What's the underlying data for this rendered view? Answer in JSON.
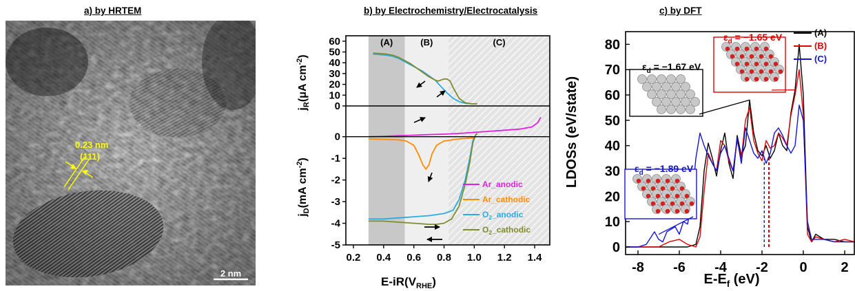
{
  "panels": {
    "a_title": "a) by HRTEM",
    "b_title": "b) by Electrochemistry/Electrocatalysis",
    "c_title": "c) by DFT"
  },
  "hrtem": {
    "lattice_spacing": "0.23 nm",
    "plane": "(111)",
    "scale_bar": "2 nm",
    "annotation_color": "#ffff00"
  },
  "chart_data": [
    {
      "type": "line",
      "panel": "b-top",
      "ylabel": "j_R(μA cm^-2)",
      "ylim": [
        0,
        65
      ],
      "yticks": [
        0,
        10,
        20,
        30,
        40,
        50,
        60
      ],
      "xlim": [
        0.15,
        1.5
      ],
      "regions": [
        {
          "label": "(A)",
          "x": [
            0.3,
            0.54
          ],
          "color": "#c8c8c8"
        },
        {
          "label": "(B)",
          "x": [
            0.54,
            0.83
          ],
          "color": "#efefef"
        },
        {
          "label": "(C)",
          "x": [
            0.83,
            1.5
          ],
          "color": "#e6e6e6",
          "hatched": true
        }
      ],
      "series": [
        {
          "name": "O2_anodic",
          "color": "#29abe2",
          "x": [
            0.33,
            0.38,
            0.42,
            0.46,
            0.5,
            0.54,
            0.58,
            0.62,
            0.66,
            0.7,
            0.74,
            0.78,
            0.82,
            0.86,
            0.9,
            0.94,
            0.98,
            1.02
          ],
          "y": [
            48,
            47.5,
            47,
            46,
            44,
            41,
            38,
            35,
            32,
            28,
            24,
            18,
            12,
            7,
            4,
            2.5,
            2,
            2
          ]
        },
        {
          "name": "O2_cathodic",
          "color": "#808b2e",
          "x": [
            0.33,
            0.38,
            0.42,
            0.46,
            0.5,
            0.54,
            0.58,
            0.62,
            0.66,
            0.7,
            0.74,
            0.76,
            0.78,
            0.8,
            0.82,
            0.84,
            0.86,
            0.9,
            0.94,
            0.98,
            1.02
          ],
          "y": [
            49,
            48.5,
            48,
            47,
            45,
            42,
            39,
            35,
            31,
            27,
            24,
            23,
            24,
            25,
            25,
            23,
            17,
            7,
            3,
            2,
            2
          ]
        }
      ]
    },
    {
      "type": "line",
      "panel": "b-bottom",
      "xlabel": "E-iR(V_RHE)",
      "ylabel": "j_D(mA cm^-2)",
      "xlim": [
        0.15,
        1.5
      ],
      "xticks": [
        0.2,
        0.4,
        0.6,
        0.8,
        1.0,
        1.2,
        1.4
      ],
      "ylim": [
        -5,
        0.5
      ],
      "yticks": [
        0,
        -1,
        -2,
        -3,
        -4,
        -5
      ],
      "legend": "bottom-right",
      "series": [
        {
          "name": "Ar_anodic",
          "color": "#e020e0",
          "x": [
            0.3,
            0.4,
            0.5,
            0.6,
            0.7,
            0.8,
            0.9,
            1.0,
            1.1,
            1.2,
            1.3,
            1.38,
            1.42,
            1.44
          ],
          "y": [
            0.0,
            0.02,
            0.05,
            0.07,
            0.1,
            0.12,
            0.15,
            0.2,
            0.25,
            0.3,
            0.35,
            0.45,
            0.65,
            0.9
          ]
        },
        {
          "name": "Ar_cathodic",
          "color": "#ff8c00",
          "x": [
            0.3,
            0.4,
            0.5,
            0.55,
            0.6,
            0.63,
            0.66,
            0.68,
            0.7,
            0.72,
            0.75,
            0.8,
            0.9,
            1.0
          ],
          "y": [
            -0.1,
            -0.12,
            -0.15,
            -0.2,
            -0.4,
            -0.8,
            -1.3,
            -1.5,
            -1.3,
            -0.8,
            -0.4,
            -0.2,
            -0.1,
            -0.05
          ]
        },
        {
          "name": "O2_anodic",
          "color": "#29abe2",
          "x": [
            0.3,
            0.4,
            0.5,
            0.6,
            0.7,
            0.8,
            0.86,
            0.9,
            0.94,
            0.97,
            0.99,
            1.01,
            1.02
          ],
          "y": [
            -3.8,
            -3.8,
            -3.75,
            -3.7,
            -3.65,
            -3.55,
            -3.4,
            -2.9,
            -2.0,
            -1.0,
            -0.2,
            0.1,
            0.15
          ]
        },
        {
          "name": "O2_cathodic",
          "color": "#808b2e",
          "x": [
            0.3,
            0.4,
            0.5,
            0.6,
            0.7,
            0.75,
            0.8,
            0.85,
            0.9,
            0.94,
            0.97,
            0.99,
            1.01,
            1.02
          ],
          "y": [
            -3.9,
            -3.9,
            -3.95,
            -4.0,
            -4.05,
            -4.05,
            -4.0,
            -3.8,
            -3.2,
            -2.2,
            -1.2,
            -0.3,
            0.1,
            0.15
          ]
        }
      ]
    },
    {
      "type": "line",
      "panel": "c",
      "xlabel": "E-E_f (eV)",
      "ylabel": "LDOSs (eV/state)",
      "xlim": [
        -8.6,
        2.5
      ],
      "xticks": [
        -8,
        -6,
        -4,
        -2,
        0,
        2
      ],
      "ylim": [
        -3,
        85
      ],
      "yticks": [
        0,
        10,
        20,
        30,
        40,
        50,
        60,
        70,
        80
      ],
      "legend": "top-right",
      "series": [
        {
          "name": "(A)",
          "color": "#000000",
          "x": [
            -8.6,
            -8.0,
            -7.0,
            -6.0,
            -5.6,
            -5.2,
            -5.0,
            -4.8,
            -4.6,
            -4.4,
            -4.2,
            -4.0,
            -3.8,
            -3.6,
            -3.4,
            -3.2,
            -3.0,
            -2.8,
            -2.6,
            -2.4,
            -2.2,
            -2.0,
            -1.8,
            -1.6,
            -1.4,
            -1.2,
            -1.0,
            -0.8,
            -0.6,
            -0.4,
            -0.2,
            0.0,
            0.2,
            0.4,
            0.6,
            1.0,
            1.5,
            2.0,
            2.5
          ],
          "y": [
            0,
            0,
            0,
            0,
            0,
            1,
            8,
            30,
            41,
            35,
            28,
            38,
            45,
            33,
            27,
            44,
            36,
            40,
            58,
            45,
            38,
            36,
            40,
            35,
            38,
            45,
            40,
            38,
            53,
            62,
            80,
            60,
            8,
            2,
            5,
            3,
            3,
            2,
            2
          ]
        },
        {
          "name": "(B)",
          "color": "#e00000",
          "x": [
            -8.6,
            -8.0,
            -7.0,
            -6.5,
            -6.0,
            -5.6,
            -5.2,
            -5.0,
            -4.8,
            -4.6,
            -4.4,
            -4.2,
            -4.0,
            -3.8,
            -3.6,
            -3.4,
            -3.2,
            -3.0,
            -2.8,
            -2.6,
            -2.4,
            -2.2,
            -2.0,
            -1.8,
            -1.6,
            -1.4,
            -1.2,
            -1.0,
            -0.8,
            -0.6,
            -0.4,
            -0.2,
            0.0,
            0.2,
            0.4,
            0.6,
            1.0,
            1.5,
            2.0,
            2.5
          ],
          "y": [
            0,
            0,
            0,
            2,
            3,
            1,
            0,
            4,
            22,
            37,
            33,
            30,
            42,
            40,
            34,
            30,
            42,
            35,
            50,
            55,
            42,
            37,
            34,
            42,
            39,
            40,
            45,
            43,
            40,
            52,
            60,
            70,
            52,
            5,
            2,
            4,
            3,
            2,
            3,
            2
          ]
        },
        {
          "name": "(C)",
          "color": "#1414d8",
          "x": [
            -8.6,
            -8.0,
            -7.6,
            -7.2,
            -7.0,
            -6.8,
            -6.6,
            -6.2,
            -6.0,
            -5.8,
            -5.6,
            -5.4,
            -5.2,
            -5.0,
            -4.8,
            -4.6,
            -4.4,
            -4.2,
            -4.0,
            -3.8,
            -3.6,
            -3.4,
            -3.2,
            -3.0,
            -2.8,
            -2.6,
            -2.4,
            -2.2,
            -2.0,
            -1.8,
            -1.6,
            -1.4,
            -1.2,
            -1.0,
            -0.8,
            -0.6,
            -0.4,
            -0.2,
            0.0,
            0.2,
            0.4,
            0.6,
            1.0,
            1.5,
            2.0,
            2.5
          ],
          "y": [
            0,
            0,
            1,
            6,
            3,
            2,
            6,
            8,
            5,
            10,
            9,
            18,
            35,
            45,
            40,
            36,
            33,
            30,
            37,
            40,
            35,
            30,
            43,
            33,
            47,
            42,
            37,
            35,
            38,
            33,
            37,
            45,
            47,
            44,
            40,
            37,
            40,
            56,
            50,
            10,
            3,
            3,
            3,
            2,
            2,
            2
          ]
        }
      ],
      "annotations": [
        {
          "text": "ε_d = −1.67 eV",
          "color": "#000000",
          "edge": -1.67
        },
        {
          "text": "ε_d = −1.65 eV",
          "color": "#e00000",
          "edge": -1.65
        },
        {
          "text": "ε_d = −1.89 eV",
          "color": "#1414d8",
          "edge": -1.89
        }
      ]
    }
  ]
}
